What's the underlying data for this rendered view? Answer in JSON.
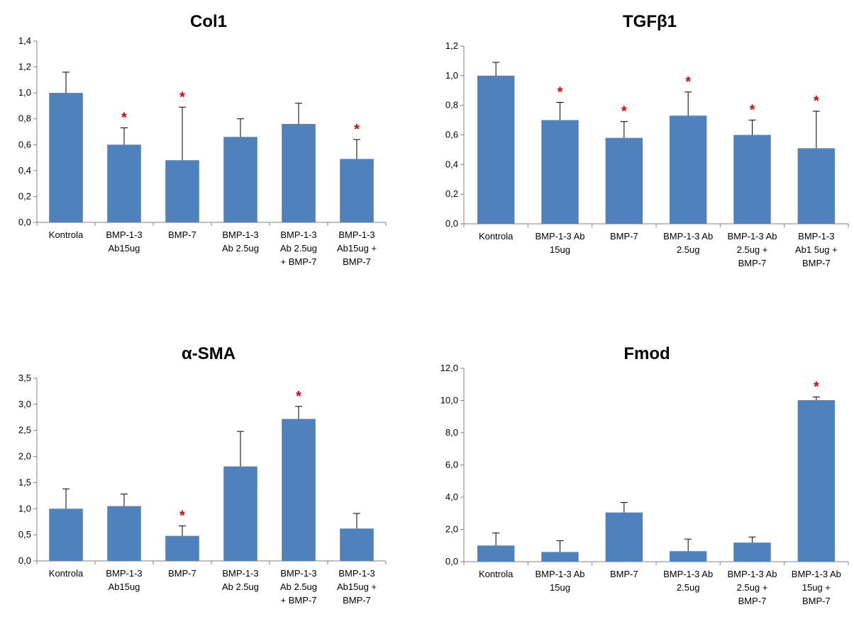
{
  "colors": {
    "bar": "#4F81BD",
    "star": "#E00000",
    "axis": "#808080",
    "text": "#000000"
  },
  "chart_data": [
    {
      "type": "bar",
      "title": "Col1",
      "categories": [
        [
          "Kontrola"
        ],
        [
          "BMP-1-3",
          "Ab15ug"
        ],
        [
          "BMP-7"
        ],
        [
          "BMP-1-3",
          "Ab 2.5ug"
        ],
        [
          "BMP-1-3",
          "Ab 2.5ug",
          "+ BMP-7"
        ],
        [
          "BMP-1-3",
          "Ab15ug +",
          "BMP-7"
        ]
      ],
      "values": [
        1.0,
        0.6,
        0.48,
        0.66,
        0.76,
        0.49
      ],
      "errors": [
        0.16,
        0.13,
        0.41,
        0.14,
        0.16,
        0.15
      ],
      "significant": [
        false,
        true,
        true,
        false,
        false,
        true
      ],
      "significance_marker": "*",
      "ylim": [
        0,
        1.4
      ],
      "yticks": [
        "0,0",
        "0,2",
        "0,4",
        "0,6",
        "0,8",
        "1,0",
        "1,2",
        "1,4"
      ],
      "grid": false
    },
    {
      "type": "bar",
      "title": "TGFβ1",
      "categories": [
        [
          "Kontrola"
        ],
        [
          "BMP-1-3 Ab",
          "15ug"
        ],
        [
          "BMP-7"
        ],
        [
          "BMP-1-3 Ab",
          "2.5ug"
        ],
        [
          "BMP-1-3 Ab",
          "2.5ug +",
          "BMP-7"
        ],
        [
          "BMP-1-3",
          "Ab1 5ug +",
          "BMP-7"
        ]
      ],
      "values": [
        1.0,
        0.7,
        0.58,
        0.73,
        0.6,
        0.51
      ],
      "errors": [
        0.09,
        0.12,
        0.11,
        0.16,
        0.1,
        0.25
      ],
      "significant": [
        false,
        true,
        true,
        true,
        true,
        true
      ],
      "significance_marker": "*",
      "ylim": [
        0,
        1.2
      ],
      "yticks": [
        "0,0",
        "0,2",
        "0,4",
        "0,6",
        "0,8",
        "1,0",
        "1,2"
      ],
      "grid": false
    },
    {
      "type": "bar",
      "title": "α-SMA",
      "categories": [
        [
          "Kontrola"
        ],
        [
          "BMP-1-3",
          "Ab15ug"
        ],
        [
          "BMP-7"
        ],
        [
          "BMP-1-3",
          "Ab 2.5ug"
        ],
        [
          "BMP-1-3",
          "Ab 2.5ug",
          "+ BMP-7"
        ],
        [
          "BMP-1-3",
          "Ab15ug +",
          "BMP-7"
        ]
      ],
      "values": [
        1.0,
        1.05,
        0.48,
        1.81,
        2.72,
        0.62
      ],
      "errors": [
        0.38,
        0.23,
        0.19,
        0.67,
        0.24,
        0.29
      ],
      "significant": [
        false,
        false,
        true,
        false,
        true,
        false
      ],
      "significance_marker": "*",
      "ylim": [
        0,
        3.5
      ],
      "yticks": [
        "0,0",
        "0,5",
        "1,0",
        "1,5",
        "2,0",
        "2,5",
        "3,0",
        "3,5"
      ],
      "grid": false
    },
    {
      "type": "bar",
      "title": "Fmod",
      "categories": [
        [
          "Kontrola"
        ],
        [
          "BMP-1-3 Ab",
          "15ug"
        ],
        [
          "BMP-7"
        ],
        [
          "BMP-1-3 Ab",
          "2.5ug"
        ],
        [
          "BMP-1-3 Ab",
          "2.5ug +",
          "BMP-7"
        ],
        [
          "BMP-1-3 Ab",
          "15ug +",
          "BMP-7"
        ]
      ],
      "values": [
        1.0,
        0.6,
        3.05,
        0.65,
        1.18,
        10.02
      ],
      "errors": [
        0.78,
        0.7,
        0.62,
        0.75,
        0.35,
        0.2
      ],
      "significant": [
        false,
        false,
        false,
        false,
        false,
        true
      ],
      "significance_marker": "*",
      "ylim": [
        0,
        12.0
      ],
      "yticks": [
        "0,0",
        "2,0",
        "4,0",
        "6,0",
        "8,0",
        "10,0",
        "12,0"
      ],
      "grid": false
    }
  ]
}
